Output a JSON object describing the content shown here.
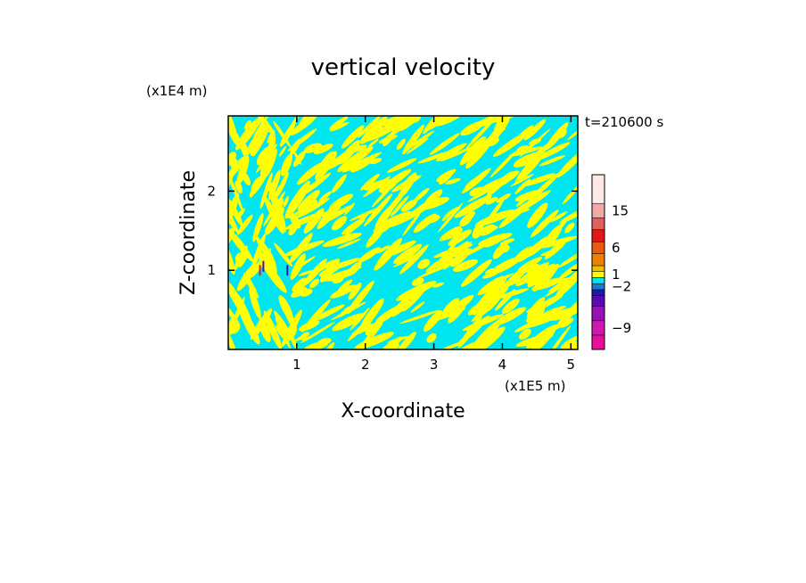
{
  "chart_data": {
    "type": "heatmap",
    "title": "vertical velocity",
    "xlabel": "X-coordinate",
    "ylabel": "Z-coordinate",
    "x_unit": "(x1E5 m)",
    "y_unit": "(x1E4 m)",
    "time_label": "t=210600 s",
    "xlim": [
      0,
      5.1
    ],
    "ylim": [
      0,
      2.95
    ],
    "x_ticks": [
      1,
      2,
      3,
      4,
      5
    ],
    "y_ticks": [
      1,
      2
    ],
    "colorbar": {
      "tick_labels": [
        "15",
        "6",
        "1",
        "−2",
        "−9"
      ],
      "levels": [
        {
          "color": "#e8109a"
        },
        {
          "color": "#cc1ab0"
        },
        {
          "color": "#9a10b8"
        },
        {
          "color": "#5b0ab0"
        },
        {
          "color": "#1c1ca8"
        },
        {
          "color": "#1e78d8"
        },
        {
          "color": "#00e6f0"
        },
        {
          "color": "#ffff00"
        },
        {
          "color": "#f0c000"
        },
        {
          "color": "#f08000"
        },
        {
          "color": "#e85a10"
        },
        {
          "color": "#e01818"
        },
        {
          "color": "#e06060"
        },
        {
          "color": "#f0a8a8"
        },
        {
          "color": "#ffe8e8"
        }
      ]
    },
    "field_colors": {
      "positive": "#ffff00",
      "negative": "#00e6f0"
    }
  }
}
